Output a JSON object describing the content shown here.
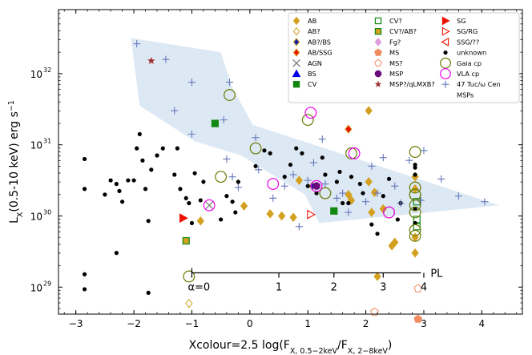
{
  "chart_data": {
    "type": "scatter",
    "xlabel": "Xcolour=2.5 log(F",
    "xlabel_sub1": "X, 0.5−2keV",
    "xlabel_mid": "/F",
    "xlabel_sub2": "X, 2−8keV",
    "xlabel_end": ")",
    "ylabel": "L",
    "ylabel_sub": "X",
    "ylabel_rest": "(0.5-10 keV) erg s",
    "ylabel_sup": "−1",
    "xlim": [
      -3.3,
      4.7
    ],
    "ylog_range": [
      28.62,
      32.9
    ],
    "x_ticks": [
      -3,
      -2,
      -1,
      0,
      1,
      2,
      3,
      4
    ],
    "x_tick_labels": [
      "−3",
      "−2",
      "−1",
      "0",
      "1",
      "2",
      "3",
      "4"
    ],
    "y_ticks": [
      29,
      30,
      31,
      32
    ],
    "y_tick_labels": [
      "10",
      "10",
      "10",
      "10"
    ],
    "y_tick_sups": [
      "29",
      "30",
      "31",
      "32"
    ],
    "shaded_region": [
      [
        -2.05,
        32.5
      ],
      [
        -0.5,
        32.3
      ],
      [
        -0.3,
        31.8
      ],
      [
        0.05,
        31.28
      ],
      [
        4.3,
        30.15
      ],
      [
        1.2,
        29.9
      ],
      [
        0.95,
        30.3
      ],
      [
        -0.15,
        30.85
      ],
      [
        -0.95,
        31.05
      ],
      [
        -1.9,
        31.55
      ]
    ],
    "power_law": {
      "label": "PL",
      "alpha_label": "α=0",
      "ticks": [
        1,
        2,
        3,
        4
      ],
      "tick_labels": [
        "1",
        "2",
        "3",
        "4"
      ],
      "tick_xcolours": [
        0.5,
        1.45,
        2.3,
        3.0
      ],
      "x_start": -1.0,
      "x_end": 2.95,
      "logL": 29.2
    },
    "series": [
      {
        "name": "AB",
        "marker": "diamond",
        "color": "#d4a020",
        "fill": true,
        "points": [
          [
            -0.1,
            30.14
          ],
          [
            0.35,
            30.03
          ],
          [
            0.55,
            30.0
          ],
          [
            0.75,
            29.98
          ],
          [
            0.85,
            30.5
          ],
          [
            1.7,
            30.3
          ],
          [
            1.75,
            30.22
          ],
          [
            2.05,
            30.48
          ],
          [
            2.1,
            30.05
          ],
          [
            2.15,
            30.33
          ],
          [
            2.05,
            31.48
          ],
          [
            2.2,
            29.15
          ],
          [
            2.45,
            29.58
          ],
          [
            2.5,
            29.63
          ],
          [
            2.85,
            29.48
          ],
          [
            2.85,
            29.7
          ],
          [
            2.85,
            30.38
          ],
          [
            2.85,
            30.55
          ],
          [
            -0.85,
            29.93
          ],
          [
            2.3,
            30.1
          ]
        ]
      },
      {
        "name": "AB?",
        "marker": "diamond",
        "color": "#d4a020",
        "fill": false,
        "points": [
          [
            -1.05,
            28.77
          ]
        ]
      },
      {
        "name": "AB?/BS",
        "marker": "diamond",
        "color": "#1020b0",
        "fill": true,
        "edge": "#d4a020",
        "points": [
          [
            1.08,
            30.42
          ]
        ]
      },
      {
        "name": "AB/SSG",
        "marker": "diamond",
        "color": "#ee1100",
        "fill": true,
        "edge": "#d4a020",
        "points": [
          [
            1.7,
            31.22
          ]
        ]
      },
      {
        "name": "AGN",
        "marker": "x",
        "color": "#777777",
        "points": [
          [
            -0.7,
            30.15
          ]
        ]
      },
      {
        "name": "BS",
        "marker": "triangle",
        "color": "#0000ee",
        "points": []
      },
      {
        "name": "CV",
        "marker": "square",
        "color": "#118811",
        "fill": true,
        "points": [
          [
            -0.6,
            31.3
          ],
          [
            1.45,
            30.07
          ]
        ]
      },
      {
        "name": "CV?",
        "marker": "square",
        "color": "#118811",
        "fill": false,
        "points": [
          [
            2.88,
            30.2
          ],
          [
            2.88,
            29.95
          ],
          [
            2.88,
            29.85
          ]
        ]
      },
      {
        "name": "CV?/AB?",
        "marker": "square",
        "color": "#d4a020",
        "fill": true,
        "edge": "#118811",
        "points": [
          [
            -1.1,
            29.65
          ]
        ]
      },
      {
        "name": "Fg?",
        "marker": "diamond",
        "color": "#dd99dd",
        "fill": true,
        "points": []
      },
      {
        "name": "MS",
        "marker": "pentagon",
        "color": "#f08c60",
        "fill": true,
        "points": [
          [
            2.9,
            28.55
          ]
        ]
      },
      {
        "name": "MS?",
        "marker": "pentagon",
        "color": "#f08c60",
        "fill": false,
        "points": [
          [
            2.9,
            28.98
          ],
          [
            2.15,
            28.65
          ]
        ]
      },
      {
        "name": "MSP",
        "marker": "circle",
        "color": "#6a0a7a",
        "fill": true,
        "points": [
          [
            1.15,
            30.42
          ]
        ]
      },
      {
        "name": "MSP?/qLMXB?",
        "marker": "star",
        "color": "#a03030",
        "points": [
          [
            -1.7,
            32.18
          ]
        ]
      },
      {
        "name": "SG",
        "marker": "triangle-right",
        "color": "#ee1100",
        "fill": true,
        "points": [
          [
            -1.15,
            29.97
          ]
        ]
      },
      {
        "name": "SG/RG",
        "marker": "triangle-right",
        "color": "#ee1100",
        "fill": false,
        "points": [
          [
            1.05,
            30.02
          ]
        ]
      },
      {
        "name": "SSG/??",
        "marker": "triangle-left",
        "color": "#ee1100",
        "fill": false,
        "points": []
      },
      {
        "name": "unknown",
        "marker": "dot",
        "color": "#000000",
        "points": [
          [
            -2.85,
            30.8
          ],
          [
            -2.85,
            30.38
          ],
          [
            -2.85,
            29.18
          ],
          [
            -2.85,
            28.97
          ],
          [
            -2.5,
            30.3
          ],
          [
            -2.4,
            30.5
          ],
          [
            -2.3,
            30.45
          ],
          [
            -2.25,
            30.35
          ],
          [
            -2.2,
            30.2
          ],
          [
            -2.1,
            30.5
          ],
          [
            -2.0,
            30.5
          ],
          [
            -1.95,
            30.95
          ],
          [
            -1.9,
            31.15
          ],
          [
            -1.85,
            30.78
          ],
          [
            -1.8,
            30.38
          ],
          [
            -1.75,
            29.93
          ],
          [
            -1.7,
            30.65
          ],
          [
            -1.6,
            30.85
          ],
          [
            -1.5,
            30.95
          ],
          [
            -1.3,
            30.58
          ],
          [
            -1.25,
            30.95
          ],
          [
            -1.2,
            30.38
          ],
          [
            -1.1,
            30.25
          ],
          [
            -1.05,
            30.18
          ],
          [
            -1.0,
            29.9
          ],
          [
            -0.95,
            30.6
          ],
          [
            -0.85,
            30.22
          ],
          [
            -0.8,
            30.48
          ],
          [
            -0.5,
            29.95
          ],
          [
            -0.4,
            30.28
          ],
          [
            -0.3,
            30.2
          ],
          [
            -0.25,
            30.05
          ],
          [
            -0.2,
            30.48
          ],
          [
            0.1,
            30.7
          ],
          [
            0.25,
            30.92
          ],
          [
            0.35,
            30.88
          ],
          [
            0.6,
            30.55
          ],
          [
            0.7,
            30.72
          ],
          [
            0.8,
            30.95
          ],
          [
            0.9,
            30.88
          ],
          [
            1.0,
            30.42
          ],
          [
            1.15,
            30.32
          ],
          [
            1.25,
            30.82
          ],
          [
            1.3,
            30.58
          ],
          [
            1.5,
            30.48
          ],
          [
            1.55,
            30.62
          ],
          [
            1.6,
            30.18
          ],
          [
            1.7,
            30.18
          ],
          [
            1.75,
            30.55
          ],
          [
            1.9,
            30.45
          ],
          [
            1.95,
            30.32
          ],
          [
            2.1,
            29.88
          ],
          [
            2.2,
            29.75
          ],
          [
            2.3,
            30.28
          ],
          [
            2.4,
            30.52
          ],
          [
            2.55,
            29.95
          ],
          [
            2.6,
            30.18
          ],
          [
            2.85,
            30.72
          ],
          [
            2.85,
            30.68
          ],
          [
            2.85,
            30.58
          ],
          [
            2.85,
            30.1
          ],
          [
            2.85,
            29.9
          ],
          [
            -2.3,
            29.48
          ],
          [
            -1.75,
            28.92
          ]
        ]
      },
      {
        "name": "Gaia cp",
        "marker": "ring",
        "color": "#6a7a00",
        "points": [
          [
            -0.35,
            31.7
          ],
          [
            0.1,
            30.95
          ],
          [
            -0.5,
            30.55
          ],
          [
            1.0,
            31.35
          ],
          [
            2.4,
            30.05
          ],
          [
            2.85,
            30.9
          ],
          [
            2.85,
            30.3
          ],
          [
            2.85,
            29.8
          ],
          [
            2.85,
            29.72
          ],
          [
            -1.05,
            29.15
          ],
          [
            1.3,
            30.32
          ],
          [
            1.75,
            30.88
          ],
          [
            2.85,
            30.4
          ],
          [
            2.85,
            30.3
          ],
          [
            2.85,
            30.15
          ],
          [
            2.85,
            30.05
          ]
        ]
      },
      {
        "name": "VLA cp",
        "marker": "ring",
        "color": "#ee00ee",
        "points": [
          [
            -0.7,
            30.15
          ],
          [
            1.05,
            31.45
          ],
          [
            1.8,
            30.88
          ],
          [
            1.15,
            30.42
          ],
          [
            2.4,
            30.05
          ],
          [
            0.4,
            30.45
          ]
        ]
      },
      {
        "name": "47 Tuc/ω Cen MSPs",
        "marker": "plus",
        "color": "#6677bb",
        "points": [
          [
            -1.95,
            32.42
          ],
          [
            -1.45,
            32.2
          ],
          [
            -1.0,
            31.88
          ],
          [
            -1.3,
            31.48
          ],
          [
            -1.0,
            31.15
          ],
          [
            -0.45,
            31.35
          ],
          [
            -0.35,
            31.88
          ],
          [
            -0.4,
            30.8
          ],
          [
            -0.3,
            30.55
          ],
          [
            -0.2,
            30.4
          ],
          [
            0.1,
            31.1
          ],
          [
            0.15,
            30.65
          ],
          [
            0.4,
            30.25
          ],
          [
            0.6,
            30.42
          ],
          [
            0.75,
            30.58
          ],
          [
            0.85,
            29.85
          ],
          [
            1.0,
            30.5
          ],
          [
            1.1,
            30.75
          ],
          [
            1.3,
            30.45
          ],
          [
            1.5,
            30.25
          ],
          [
            1.6,
            30.32
          ],
          [
            1.7,
            30.05
          ],
          [
            2.0,
            30.2
          ],
          [
            2.1,
            30.7
          ],
          [
            2.2,
            30.32
          ],
          [
            2.3,
            30.82
          ],
          [
            2.5,
            30.42
          ],
          [
            2.6,
            30.18
          ],
          [
            2.75,
            30.78
          ],
          [
            2.95,
            30.22
          ],
          [
            3.0,
            30.92
          ],
          [
            3.3,
            30.52
          ],
          [
            3.6,
            30.28
          ],
          [
            4.05,
            30.2
          ],
          [
            1.25,
            31.08
          ]
        ]
      }
    ]
  },
  "legend": {
    "columns": [
      [
        "AB",
        "AB?",
        "AB?/BS",
        "AB/SSG",
        "AGN",
        "BS",
        "CV"
      ],
      [
        "CV?",
        "CV?/AB?",
        "Fg?",
        "MS",
        "MS?",
        "MSP",
        "MSP?/qLMXB?"
      ],
      [
        "SG",
        "SG/RG",
        "SSG/??",
        "unknown",
        "Gaia cp",
        "VLA cp",
        "47 Tuc/ω Cen",
        "MSPs"
      ]
    ],
    "extra_markers": {
      "Fg?": "#dd99dd",
      "MSPs_note": "47 Tuc/ω Cen MSPs"
    }
  }
}
